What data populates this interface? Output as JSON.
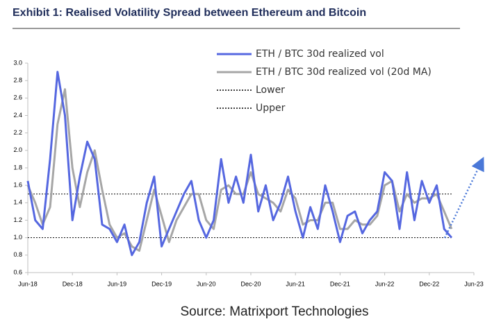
{
  "chart_data": {
    "type": "line",
    "title": "Exhibit 1: Realised Volatility Spread between Ethereum and Bitcoin",
    "source": "Source: Matrixport Technologies",
    "x": [
      "2018-06",
      "2018-07",
      "2018-08",
      "2018-09",
      "2018-10",
      "2018-11",
      "2018-12",
      "2019-01",
      "2019-02",
      "2019-03",
      "2019-04",
      "2019-05",
      "2019-06",
      "2019-07",
      "2019-08",
      "2019-09",
      "2019-10",
      "2019-11",
      "2019-12",
      "2020-01",
      "2020-02",
      "2020-03",
      "2020-04",
      "2020-05",
      "2020-06",
      "2020-07",
      "2020-08",
      "2020-09",
      "2020-10",
      "2020-11",
      "2020-12",
      "2021-01",
      "2021-02",
      "2021-03",
      "2021-04",
      "2021-05",
      "2021-06",
      "2021-07",
      "2021-08",
      "2021-09",
      "2021-10",
      "2021-11",
      "2021-12",
      "2022-01",
      "2022-02",
      "2022-03",
      "2022-04",
      "2022-05",
      "2022-06",
      "2022-07",
      "2022-08",
      "2022-09",
      "2022-10",
      "2022-11",
      "2022-12",
      "2023-01",
      "2023-02",
      "2023-03"
    ],
    "series": [
      {
        "name": "ETH / BTC 30d realized vol",
        "color": "#5567e0",
        "width": 3,
        "values": [
          1.65,
          1.2,
          1.1,
          1.9,
          2.9,
          2.4,
          1.2,
          1.7,
          2.1,
          1.9,
          1.15,
          1.1,
          0.95,
          1.15,
          0.8,
          0.95,
          1.4,
          1.7,
          0.9,
          1.1,
          1.3,
          1.5,
          1.65,
          1.2,
          1.0,
          1.2,
          1.9,
          1.4,
          1.7,
          1.4,
          1.95,
          1.3,
          1.6,
          1.2,
          1.4,
          1.7,
          1.3,
          1.0,
          1.35,
          1.1,
          1.6,
          1.3,
          0.95,
          1.25,
          1.3,
          1.05,
          1.2,
          1.3,
          1.75,
          1.65,
          1.1,
          1.75,
          1.2,
          1.65,
          1.4,
          1.6,
          1.1,
          1.0
        ]
      },
      {
        "name": "ETH / BTC 30d realized vol (20d MA)",
        "color": "#a6a6a6",
        "width": 3,
        "values": [
          1.6,
          1.4,
          1.15,
          1.35,
          2.3,
          2.7,
          1.8,
          1.35,
          1.75,
          2.0,
          1.55,
          1.15,
          1.0,
          1.05,
          0.9,
          0.85,
          1.2,
          1.55,
          1.25,
          0.95,
          1.2,
          1.35,
          1.5,
          1.5,
          1.2,
          1.1,
          1.55,
          1.6,
          1.5,
          1.5,
          1.75,
          1.5,
          1.45,
          1.4,
          1.3,
          1.55,
          1.45,
          1.15,
          1.2,
          1.2,
          1.4,
          1.4,
          1.1,
          1.1,
          1.2,
          1.15,
          1.15,
          1.25,
          1.6,
          1.65,
          1.3,
          1.5,
          1.4,
          1.45,
          1.45,
          1.5,
          1.3,
          1.1
        ]
      }
    ],
    "reference_lines": [
      {
        "name": "Lower",
        "value": 1,
        "color": "#000000"
      },
      {
        "name": "Upper",
        "value": 1.5,
        "color": "#000000"
      }
    ],
    "xlim": [
      "2018-06",
      "2023-06"
    ],
    "xticks": [
      {
        "value": "2018-06",
        "label": "Jun-18"
      },
      {
        "value": "2018-12",
        "label": "Dec-18"
      },
      {
        "value": "2019-06",
        "label": "Jun-19"
      },
      {
        "value": "2019-12",
        "label": "Dec-19"
      },
      {
        "value": "2020-06",
        "label": "Jun-20"
      },
      {
        "value": "2020-12",
        "label": "Dec-20"
      },
      {
        "value": "2021-06",
        "label": "Jun-21"
      },
      {
        "value": "2021-12",
        "label": "Dec-21"
      },
      {
        "value": "2022-06",
        "label": "Jun-22"
      },
      {
        "value": "2022-12",
        "label": "Dec-22"
      },
      {
        "value": "2023-06",
        "label": "Jun-23"
      }
    ],
    "ylim": [
      0.6,
      3
    ],
    "yticks": [
      0.6,
      0.8,
      {
        "value": 1,
        "label": "1.0"
      },
      1.2,
      1.4,
      1.6,
      1.8,
      {
        "value": 2,
        "label": "2.0"
      },
      2.2,
      2.4,
      2.6,
      2.8,
      {
        "value": 3,
        "label": "3.0"
      }
    ],
    "legend": "top"
  }
}
